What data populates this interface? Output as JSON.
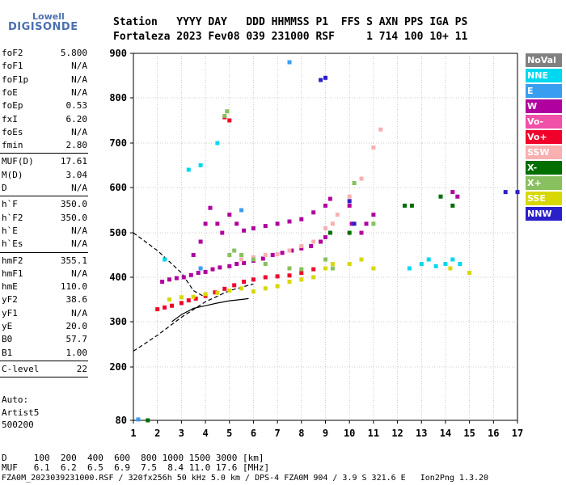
{
  "logo": {
    "top": "Lowell",
    "main": "DIGISONDE"
  },
  "header": {
    "line1": "Station   YYYY DAY   DDD HHMMSS P1  FFS S AXN PPS IGA PS",
    "line2": "Fortaleza 2023 Fev08 039 231000 RSF     1 714 100 10+ 11"
  },
  "params_group1": [
    {
      "name": "foF2",
      "value": "5.800"
    },
    {
      "name": "foF1",
      "value": "N/A"
    },
    {
      "name": "foF1p",
      "value": "N/A"
    },
    {
      "name": "foE",
      "value": "N/A"
    },
    {
      "name": "foEp",
      "value": "0.53"
    },
    {
      "name": "fxI",
      "value": "6.20"
    },
    {
      "name": "foEs",
      "value": "N/A"
    },
    {
      "name": "fmin",
      "value": "2.80"
    }
  ],
  "params_group2": [
    {
      "name": "MUF(D)",
      "value": "17.61"
    },
    {
      "name": "M(D)",
      "value": "3.04"
    },
    {
      "name": "D",
      "value": "N/A"
    }
  ],
  "params_group3": [
    {
      "name": "h`F",
      "value": "350.0"
    },
    {
      "name": "h`F2",
      "value": "350.0"
    },
    {
      "name": "h`E",
      "value": "N/A"
    },
    {
      "name": "h`Es",
      "value": "N/A"
    }
  ],
  "params_group4": [
    {
      "name": "hmF2",
      "value": "355.1"
    },
    {
      "name": "hmF1",
      "value": "N/A"
    },
    {
      "name": "hmE",
      "value": "110.0"
    },
    {
      "name": "yF2",
      "value": "38.6"
    },
    {
      "name": "yF1",
      "value": "N/A"
    },
    {
      "name": "yE",
      "value": "20.0"
    },
    {
      "name": "B0",
      "value": "57.7"
    },
    {
      "name": "B1",
      "value": "1.00"
    }
  ],
  "params_group5": [
    {
      "name": "C-level",
      "value": "22"
    }
  ],
  "auto": {
    "line1": "Auto:",
    "line2": "Artist5",
    "line3": "500200"
  },
  "legend": [
    {
      "label": "NoVal",
      "color": "#808080",
      "text_color": "#ffffff"
    },
    {
      "label": "NNE",
      "color": "#00d8f0",
      "text_color": "#ffffff"
    },
    {
      "label": "E",
      "color": "#3a9ef0",
      "text_color": "#ffffff"
    },
    {
      "label": "W",
      "color": "#b0009e",
      "text_color": "#ffffff"
    },
    {
      "label": "Vo-",
      "color": "#f050a8",
      "text_color": "#ffffff"
    },
    {
      "label": "Vo+",
      "color": "#f0002a",
      "text_color": "#ffffff"
    },
    {
      "label": "SSW",
      "color": "#f8b0b0",
      "text_color": "#ffffff"
    },
    {
      "label": "X-",
      "color": "#006e00",
      "text_color": "#ffffff"
    },
    {
      "label": "X+",
      "color": "#88c060",
      "text_color": "#ffffff"
    },
    {
      "label": "SSE",
      "color": "#d8d800",
      "text_color": "#ffffff"
    },
    {
      "label": "NNW",
      "color": "#2a20c8",
      "text_color": "#ffffff"
    }
  ],
  "footer": {
    "line1": "D     100  200  400  600  800 1000 1500 3000 [km]",
    "line2": "MUF   6.1  6.2  6.5  6.9  7.5  8.4 11.0 17.6 [MHz]",
    "line3": "FZA0M_2023039231000.RSF / 320fx256h 50 kHz 5.0 km / DPS-4 FZA0M 904 / 3.9 S 321.6 E   Ion2Png 1.3.20"
  },
  "chart_data": {
    "type": "scatter",
    "xlabel": "",
    "ylabel": "",
    "xlim": [
      1,
      17
    ],
    "ylim": [
      80,
      900
    ],
    "x_ticks": [
      1,
      2,
      3,
      4,
      5,
      6,
      7,
      8,
      9,
      10,
      11,
      12,
      13,
      14,
      15,
      16,
      17
    ],
    "y_ticks": [
      80,
      200,
      300,
      400,
      500,
      600,
      700,
      800,
      900
    ],
    "grid": true,
    "series": [
      {
        "name": "W",
        "color": "#b0009e",
        "points": [
          [
            2.2,
            390
          ],
          [
            2.5,
            395
          ],
          [
            2.8,
            398
          ],
          [
            3.1,
            400
          ],
          [
            3.4,
            405
          ],
          [
            3.7,
            410
          ],
          [
            4.0,
            412
          ],
          [
            4.3,
            418
          ],
          [
            4.6,
            422
          ],
          [
            5.0,
            425
          ],
          [
            5.3,
            430
          ],
          [
            5.6,
            432
          ],
          [
            6.0,
            437
          ],
          [
            6.4,
            442
          ],
          [
            6.8,
            450
          ],
          [
            7.2,
            455
          ],
          [
            7.6,
            460
          ],
          [
            8.0,
            465
          ],
          [
            8.4,
            470
          ],
          [
            8.8,
            480
          ],
          [
            9.0,
            490
          ],
          [
            3.5,
            450
          ],
          [
            3.8,
            480
          ],
          [
            4.0,
            520
          ],
          [
            4.2,
            555
          ],
          [
            4.5,
            520
          ],
          [
            4.7,
            500
          ],
          [
            5.0,
            540
          ],
          [
            5.3,
            520
          ],
          [
            5.6,
            505
          ],
          [
            6.0,
            510
          ],
          [
            6.5,
            515
          ],
          [
            7.0,
            520
          ],
          [
            7.5,
            525
          ],
          [
            8.0,
            530
          ],
          [
            8.5,
            545
          ],
          [
            9.0,
            560
          ],
          [
            9.2,
            575
          ],
          [
            10.0,
            560
          ],
          [
            10.1,
            520
          ],
          [
            10.5,
            500
          ],
          [
            10.7,
            520
          ],
          [
            11.0,
            540
          ],
          [
            14.3,
            590
          ],
          [
            14.5,
            580
          ]
        ]
      },
      {
        "name": "SSW",
        "color": "#f8b0b0",
        "points": [
          [
            5.5,
            440
          ],
          [
            6.0,
            445
          ],
          [
            6.5,
            450
          ],
          [
            7.0,
            452
          ],
          [
            7.5,
            460
          ],
          [
            8.0,
            470
          ],
          [
            8.5,
            480
          ],
          [
            9.0,
            510
          ],
          [
            9.3,
            520
          ],
          [
            9.5,
            540
          ],
          [
            10.0,
            580
          ],
          [
            10.5,
            620
          ],
          [
            11.0,
            690
          ],
          [
            11.3,
            730
          ]
        ]
      },
      {
        "name": "Vo+",
        "color": "#f0002a",
        "points": [
          [
            2.0,
            328
          ],
          [
            2.3,
            332
          ],
          [
            2.6,
            336
          ],
          [
            3.0,
            342
          ],
          [
            3.3,
            348
          ],
          [
            3.6,
            352
          ],
          [
            4.0,
            358
          ],
          [
            4.4,
            366
          ],
          [
            4.8,
            374
          ],
          [
            5.2,
            382
          ],
          [
            5.6,
            390
          ],
          [
            6.0,
            395
          ],
          [
            6.5,
            400
          ],
          [
            7.0,
            402
          ],
          [
            7.5,
            404
          ],
          [
            8.0,
            410
          ],
          [
            8.5,
            418
          ],
          [
            9.0,
            420
          ],
          [
            4.8,
            757
          ],
          [
            5.0,
            750
          ]
        ]
      },
      {
        "name": "SSE",
        "color": "#d8d800",
        "points": [
          [
            2.5,
            350
          ],
          [
            3.0,
            355
          ],
          [
            3.5,
            356
          ],
          [
            4.0,
            362
          ],
          [
            4.5,
            365
          ],
          [
            5.0,
            370
          ],
          [
            5.5,
            375
          ],
          [
            6.0,
            368
          ],
          [
            6.5,
            375
          ],
          [
            7.0,
            380
          ],
          [
            7.5,
            390
          ],
          [
            8.0,
            395
          ],
          [
            8.5,
            400
          ],
          [
            9.0,
            420
          ],
          [
            9.3,
            430
          ],
          [
            10.0,
            430
          ],
          [
            10.5,
            440
          ],
          [
            11.0,
            420
          ],
          [
            14.2,
            420
          ],
          [
            15.0,
            410
          ]
        ]
      },
      {
        "name": "X+",
        "color": "#88c060",
        "points": [
          [
            5.0,
            450
          ],
          [
            5.2,
            460
          ],
          [
            5.5,
            450
          ],
          [
            6.0,
            440
          ],
          [
            6.5,
            430
          ],
          [
            7.5,
            420
          ],
          [
            8.0,
            418
          ],
          [
            9.0,
            440
          ],
          [
            9.3,
            420
          ],
          [
            4.8,
            760
          ],
          [
            4.9,
            770
          ],
          [
            10.2,
            610
          ],
          [
            11.0,
            520
          ]
        ]
      },
      {
        "name": "NNE",
        "color": "#00d8f0",
        "points": [
          [
            2.3,
            440
          ],
          [
            12.5,
            420
          ],
          [
            13.0,
            430
          ],
          [
            13.3,
            440
          ],
          [
            13.6,
            425
          ],
          [
            14.0,
            430
          ],
          [
            14.3,
            440
          ],
          [
            14.6,
            430
          ],
          [
            3.3,
            640
          ],
          [
            3.8,
            650
          ],
          [
            4.5,
            700
          ]
        ]
      },
      {
        "name": "X-",
        "color": "#006e00",
        "points": [
          [
            9.2,
            500
          ],
          [
            10.0,
            500
          ],
          [
            12.3,
            560
          ],
          [
            12.6,
            560
          ],
          [
            13.8,
            580
          ],
          [
            14.3,
            560
          ],
          [
            1.6,
            80
          ]
        ]
      },
      {
        "name": "NNW",
        "color": "#2a20c8",
        "points": [
          [
            8.8,
            840
          ],
          [
            9.0,
            845
          ],
          [
            10.0,
            570
          ],
          [
            10.2,
            520
          ],
          [
            16.5,
            590
          ],
          [
            17.0,
            590
          ]
        ]
      },
      {
        "name": "E",
        "color": "#3a9ef0",
        "points": [
          [
            1.2,
            82
          ],
          [
            3.8,
            420
          ],
          [
            5.5,
            550
          ],
          [
            7.5,
            880
          ]
        ]
      }
    ],
    "lines": [
      {
        "name": "",
        "style": "dashed",
        "points": [
          [
            1.0,
            500
          ],
          [
            2.0,
            460
          ],
          [
            3.0,
            410
          ],
          [
            3.5,
            370
          ],
          [
            4.0,
            355
          ]
        ]
      },
      {
        "name": "",
        "style": "dashed",
        "points": [
          [
            1.0,
            235
          ],
          [
            2.0,
            270
          ],
          [
            3.0,
            310
          ],
          [
            4.0,
            345
          ],
          [
            5.0,
            370
          ],
          [
            6.0,
            385
          ]
        ]
      },
      {
        "name": "",
        "style": "solid",
        "points": [
          [
            2.6,
            300
          ],
          [
            3.0,
            316
          ],
          [
            3.5,
            330
          ],
          [
            4.0,
            336
          ],
          [
            4.5,
            342
          ],
          [
            5.0,
            347
          ],
          [
            5.5,
            350
          ],
          [
            5.8,
            352
          ]
        ]
      }
    ]
  }
}
